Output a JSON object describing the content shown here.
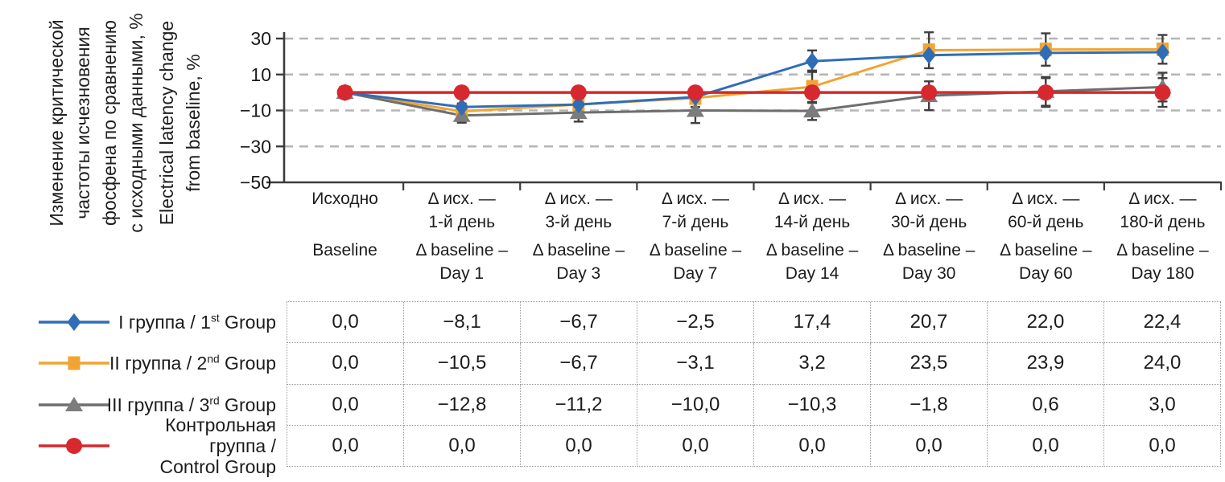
{
  "figure": {
    "y_axis_label_lines_ru": [
      "Изменение критической",
      "частоты исчезновения",
      "фосфена по сравнению",
      "с исходными данными, %"
    ],
    "y_axis_label_lines_en": [
      "Electrical latency change",
      "from baseline, %"
    ]
  },
  "chart_data": {
    "type": "line",
    "title": "",
    "ylabel_ru": "Изменение критической частоты исчезновения фосфена по сравнению с исходными данными, %",
    "ylabel_en": "Electrical latency change from baseline, %",
    "ylim": [
      -50,
      30
    ],
    "yticks": [
      30,
      10,
      -10,
      -30,
      -50
    ],
    "ytick_labels": [
      "30",
      "10",
      "−10",
      "−30",
      "−50"
    ],
    "grid_values": [
      30,
      10,
      -10,
      -30
    ],
    "grid": true,
    "grid_style": "dashed",
    "legend_position": "bottom-left",
    "colors": {
      "grid": "#b5b5b5",
      "axis": "#3d3d3d",
      "error": "#3f3f3f",
      "text": "#1a1a1a"
    },
    "draw_order": [
      1,
      2,
      0,
      3
    ],
    "categories_ru": [
      "Исходно",
      "Δ исх. — 1-й день",
      "Δ исх. — 3-й день",
      "Δ исх. — 7-й день",
      "Δ исх. — 14-й день",
      "Δ исх. — 30-й день",
      "Δ исх. — 60-й день",
      "Δ исх. — 180-й день"
    ],
    "categories_en": [
      "Baseline",
      "Δ baseline – Day 1",
      "Δ baseline – Day 3",
      "Δ baseline – Day 7",
      "Δ baseline – Day 14",
      "Δ baseline – Day 30",
      "Δ baseline – Day 60",
      "Δ baseline – Day 180"
    ],
    "x_tick_labels": [
      {
        "ru_lines": [
          "Исходно"
        ],
        "en_lines": [
          "Baseline"
        ]
      },
      {
        "ru_lines": [
          "Δ исх. —",
          "1-й день"
        ],
        "en_lines": [
          "Δ baseline –",
          "Day 1"
        ]
      },
      {
        "ru_lines": [
          "Δ исх. —",
          "3-й день"
        ],
        "en_lines": [
          "Δ baseline –",
          "Day 3"
        ]
      },
      {
        "ru_lines": [
          "Δ исх. —",
          "7-й день"
        ],
        "en_lines": [
          "Δ baseline –",
          "Day 7"
        ]
      },
      {
        "ru_lines": [
          "Δ исх. —",
          "14-й день"
        ],
        "en_lines": [
          "Δ baseline –",
          "Day 14"
        ]
      },
      {
        "ru_lines": [
          "Δ исх. —",
          "30-й день"
        ],
        "en_lines": [
          "Δ baseline –",
          "Day 30"
        ]
      },
      {
        "ru_lines": [
          "Δ исх. —",
          "60-й день"
        ],
        "en_lines": [
          "Δ baseline –",
          "Day 60"
        ]
      },
      {
        "ru_lines": [
          "Δ исх. —",
          "180-й день"
        ],
        "en_lines": [
          "Δ baseline –",
          "Day 180"
        ]
      }
    ],
    "series": [
      {
        "name_ru": "I группа",
        "ordinal_num": "1",
        "ordinal_suffix": "st",
        "name_en": "Group",
        "marker": "diamond",
        "color": "#2f6eb6",
        "values": [
          0.0,
          -8.1,
          -6.7,
          -2.5,
          17.4,
          20.7,
          22.0,
          22.4
        ],
        "errors_est": [
          2,
          2,
          2,
          3,
          6,
          0,
          0,
          0
        ]
      },
      {
        "name_ru": "II группа",
        "ordinal_num": "2",
        "ordinal_suffix": "nd",
        "name_en": "Group",
        "marker": "square",
        "color": "#f2a432",
        "values": [
          0.0,
          -10.5,
          -6.7,
          -3.1,
          3.2,
          23.5,
          23.9,
          24.0
        ],
        "errors_est": [
          3,
          3,
          4,
          5,
          9,
          10,
          9,
          8
        ]
      },
      {
        "name_ru": "III группа",
        "ordinal_num": "3",
        "ordinal_suffix": "rd",
        "name_en": "Group",
        "marker": "triangle",
        "color": "#6e6e6e",
        "marker_color": "#7c7c7c",
        "values": [
          0.0,
          -12.8,
          -11.2,
          -10.0,
          -10.3,
          -1.8,
          0.6,
          3.0
        ],
        "errors_est": [
          2,
          4,
          5,
          7,
          5,
          8,
          8,
          8
        ]
      },
      {
        "name_ru": "Контрольная группа /",
        "name_en": "Control Group",
        "two_line": true,
        "marker": "circle",
        "color": "#d7282f",
        "values": [
          0.0,
          0.0,
          0.0,
          0.0,
          0.0,
          0.0,
          0.0,
          0.0
        ],
        "errors_est": [
          2,
          0,
          0,
          0,
          0,
          0,
          8,
          8
        ]
      }
    ]
  },
  "table": {
    "rows": [
      [
        "0,0",
        "−8,1",
        "−6,7",
        "−2,5",
        "17,4",
        "20,7",
        "22,0",
        "22,4"
      ],
      [
        "0,0",
        "−10,5",
        "−6,7",
        "−3,1",
        "3,2",
        "23,5",
        "23,9",
        "24,0"
      ],
      [
        "0,0",
        "−12,8",
        "−11,2",
        "−10,0",
        "−10,3",
        "−1,8",
        "0,6",
        "3,0"
      ],
      [
        "0,0",
        "0,0",
        "0,0",
        "0,0",
        "0,0",
        "0,0",
        "0,0",
        "0,0"
      ]
    ]
  }
}
